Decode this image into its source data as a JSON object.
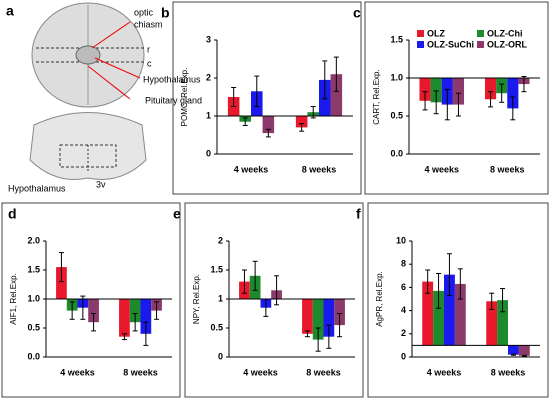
{
  "figure": {
    "panel": "a",
    "labels": {
      "optic": "optic",
      "chiasm": "chiasm",
      "r": "r",
      "c": "c",
      "hypothalamus_top": "Hypothalamus",
      "pituitary": "Pituitary gland",
      "hypothalamus_bottom": "Hypothalamus",
      "v3": "3v"
    }
  },
  "chart_data": [
    {
      "type": "bar",
      "panel": "b",
      "y_label": "POMC, Rel.Exp.",
      "categories": [
        "4 weeks",
        "8 weeks"
      ],
      "baseline": 1,
      "ylim": [
        0,
        3
      ],
      "yticks": [
        0,
        1,
        2,
        3
      ],
      "series": [
        {
          "color": "#e8192c",
          "values": [
            1.5,
            0.7
          ],
          "errors": [
            0.25,
            0.1
          ]
        },
        {
          "color": "#1e8a2e",
          "values": [
            0.85,
            1.1
          ],
          "errors": [
            0.1,
            0.15
          ]
        },
        {
          "color": "#1a1aee",
          "values": [
            1.65,
            1.95
          ],
          "errors": [
            0.4,
            0.5
          ]
        },
        {
          "color": "#8b3a6b",
          "values": [
            0.55,
            2.1
          ],
          "errors": [
            0.1,
            0.45
          ]
        }
      ]
    },
    {
      "type": "bar",
      "panel": "c",
      "y_label": "CART, Rel.Exp.",
      "categories": [
        "4 weeks",
        "8 weeks"
      ],
      "baseline": 1,
      "ylim": [
        0,
        1.5
      ],
      "yticks": [
        {
          "value": 0,
          "label": "0.0"
        },
        {
          "value": 0.5,
          "label": "0.5"
        },
        {
          "value": 1,
          "label": "1.0"
        },
        {
          "value": 1.5,
          "label": "1.5"
        }
      ],
      "legend": "upper-right",
      "series": [
        {
          "name": "OLZ",
          "color": "#e8192c",
          "values": [
            0.7,
            0.72
          ],
          "errors": [
            0.12,
            0.1
          ]
        },
        {
          "name": "OLZ-Chi",
          "color": "#1e8a2e",
          "values": [
            0.68,
            0.8
          ],
          "errors": [
            0.15,
            0.12
          ]
        },
        {
          "name": "OLZ-SuChi",
          "color": "#1a1aee",
          "values": [
            0.65,
            0.6
          ],
          "errors": [
            0.2,
            0.15
          ]
        },
        {
          "name": "OLZ-ORL",
          "color": "#8b3a6b",
          "values": [
            0.65,
            0.92
          ],
          "errors": [
            0.15,
            0.1
          ]
        }
      ]
    },
    {
      "type": "bar",
      "panel": "d",
      "y_label": "AIF1, Rel.Exp.",
      "categories": [
        "4 weeks",
        "8 weeks"
      ],
      "baseline": 1,
      "ylim": [
        0,
        2
      ],
      "yticks": [
        {
          "value": 0,
          "label": "0.0"
        },
        {
          "value": 0.5,
          "label": "0.5"
        },
        {
          "value": 1,
          "label": "1.0"
        },
        {
          "value": 1.5,
          "label": "1.5"
        },
        {
          "value": 2,
          "label": "2.0"
        }
      ],
      "series": [
        {
          "color": "#e8192c",
          "values": [
            1.55,
            0.35
          ],
          "errors": [
            0.25,
            0.05
          ]
        },
        {
          "color": "#1e8a2e",
          "values": [
            0.8,
            0.6
          ],
          "errors": [
            0.15,
            0.15
          ]
        },
        {
          "color": "#1a1aee",
          "values": [
            0.85,
            0.4
          ],
          "errors": [
            0.2,
            0.2
          ]
        },
        {
          "color": "#8b3a6b",
          "values": [
            0.6,
            0.8
          ],
          "errors": [
            0.15,
            0.15
          ]
        }
      ]
    },
    {
      "type": "bar",
      "panel": "e",
      "y_label": "NPY, Rel.Exp.",
      "categories": [
        "4 weeks",
        "8 weeks"
      ],
      "baseline": 1,
      "ylim": [
        0,
        2
      ],
      "yticks": [
        0,
        0.5,
        1,
        1.5,
        2
      ],
      "series": [
        {
          "color": "#e8192c",
          "values": [
            1.3,
            0.4
          ],
          "errors": [
            0.2,
            0.05
          ]
        },
        {
          "color": "#1e8a2e",
          "values": [
            1.4,
            0.3
          ],
          "errors": [
            0.25,
            0.2
          ]
        },
        {
          "color": "#1a1aee",
          "values": [
            0.85,
            0.35
          ],
          "errors": [
            0.15,
            0.2
          ]
        },
        {
          "color": "#8b3a6b",
          "values": [
            1.15,
            0.55
          ],
          "errors": [
            0.25,
            0.2
          ]
        }
      ]
    },
    {
      "type": "bar",
      "panel": "f",
      "y_label": "AgPR, Rel.Exp.",
      "categories": [
        "4 weeks",
        "8 weeks"
      ],
      "baseline": 1,
      "ylim": [
        0,
        10
      ],
      "yticks": [
        0,
        2,
        4,
        6,
        8,
        10
      ],
      "series": [
        {
          "color": "#e8192c",
          "values": [
            6.5,
            4.8
          ],
          "errors": [
            1,
            0.7
          ]
        },
        {
          "color": "#1e8a2e",
          "values": [
            5.7,
            4.9
          ],
          "errors": [
            1.5,
            1
          ]
        },
        {
          "color": "#1a1aee",
          "values": [
            7.1,
            0.2
          ],
          "errors": [
            1.8,
            0.05
          ]
        },
        {
          "color": "#8b3a6b",
          "values": [
            6.3,
            0.1
          ],
          "errors": [
            1.3,
            0.05
          ]
        }
      ]
    }
  ]
}
